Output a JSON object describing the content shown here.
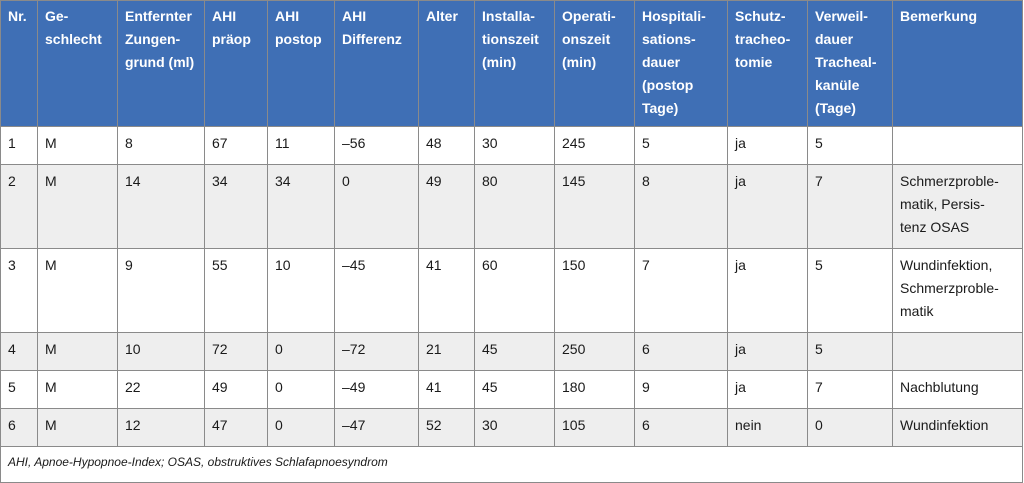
{
  "table": {
    "headers": [
      "Nr.",
      "Ge-\nschlecht",
      "Entfernter\nZungen-\ngrund (ml)",
      "AHI\npräop",
      "AHI\npostop",
      "AHI\nDifferenz",
      "Alter",
      "Installa-\ntionszeit\n(min)",
      "Operati-\nonszeit\n(min)",
      "Hospitali-\nsations-\ndauer\n(postop\nTage)",
      "Schutz-\ntracheo-\ntomie",
      "Verweil-\ndauer\nTracheal-\nkanüle\n(Tage)",
      "Bemerkung"
    ],
    "rows": [
      [
        "1",
        "M",
        "8",
        "67",
        "11",
        "–56",
        "48",
        "30",
        "245",
        "5",
        "ja",
        "5",
        ""
      ],
      [
        "2",
        "M",
        "14",
        "34",
        "34",
        "0",
        "49",
        "80",
        "145",
        "8",
        "ja",
        "7",
        "Schmerzproble-\nmatik, Persis-\ntenz OSAS"
      ],
      [
        "3",
        "M",
        "9",
        "55",
        "10",
        "–45",
        "41",
        "60",
        "150",
        "7",
        "ja",
        "5",
        "Wundinfektion,\nSchmerzproble-\nmatik"
      ],
      [
        "4",
        "M",
        "10",
        "72",
        "0",
        "–72",
        "21",
        "45",
        "250",
        "6",
        "ja",
        "5",
        ""
      ],
      [
        "5",
        "M",
        "22",
        "49",
        "0",
        "–49",
        "41",
        "45",
        "180",
        "9",
        "ja",
        "7",
        "Nachblutung"
      ],
      [
        "6",
        "M",
        "12",
        "47",
        "0",
        "–47",
        "52",
        "30",
        "105",
        "6",
        "nein",
        "0",
        "Wundinfektion"
      ]
    ],
    "footnote": "AHI, Apnoe-Hypopnoe-Index; OSAS, obstruktives Schlafapnoesyndrom"
  },
  "colors": {
    "header_bg": "#3f6fb5",
    "header_text": "#ffffff",
    "alt_row_bg": "#eeeeee",
    "border": "#8a8a8a"
  }
}
